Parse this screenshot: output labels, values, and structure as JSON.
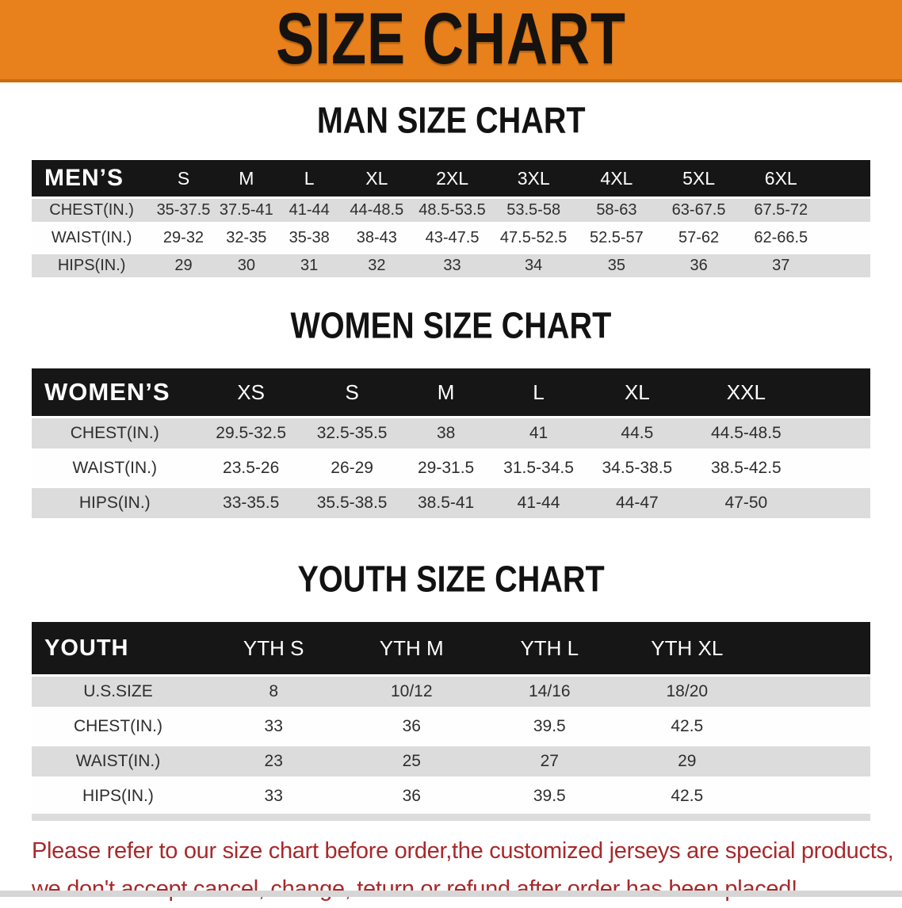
{
  "banner": {
    "title": "SIZE CHART"
  },
  "colors": {
    "banner_orange": "#e8811b",
    "banner_edge": "#c86d10",
    "header_black": "#161616",
    "row_gray": "#dcdcdc",
    "disclaimer_red": "#a8292b"
  },
  "sections": [
    {
      "heading": "MAN SIZE CHART",
      "table": {
        "corner": "MEN’S",
        "columns": [
          "S",
          "M",
          "L",
          "XL",
          "2XL",
          "3XL",
          "4XL",
          "5XL",
          "6XL"
        ],
        "rows": [
          {
            "label": "CHEST(IN.)",
            "values": [
              "35-37.5",
              "37.5-41",
              "41-44",
              "44-48.5",
              "48.5-53.5",
              "53.5-58",
              "58-63",
              "63-67.5",
              "67.5-72"
            ]
          },
          {
            "label": "WAIST(IN.)",
            "values": [
              "29-32",
              "32-35",
              "35-38",
              "38-43",
              "43-47.5",
              "47.5-52.5",
              "52.5-57",
              "57-62",
              "62-66.5"
            ]
          },
          {
            "label": "HIPS(IN.)",
            "values": [
              "29",
              "30",
              "31",
              "32",
              "33",
              "34",
              "35",
              "36",
              "37"
            ]
          }
        ]
      }
    },
    {
      "heading": "WOMEN SIZE CHART",
      "table": {
        "corner": "WOMEN’S",
        "columns": [
          "XS",
          "S",
          "M",
          "L",
          "XL",
          "XXL"
        ],
        "rows": [
          {
            "label": "CHEST(IN.)",
            "values": [
              "29.5-32.5",
              "32.5-35.5",
              "38",
              "41",
              "44.5",
              "44.5-48.5"
            ]
          },
          {
            "label": "WAIST(IN.)",
            "values": [
              "23.5-26",
              "26-29",
              "29-31.5",
              "31.5-34.5",
              "34.5-38.5",
              "38.5-42.5"
            ]
          },
          {
            "label": "HIPS(IN.)",
            "values": [
              "33-35.5",
              "35.5-38.5",
              "38.5-41",
              "41-44",
              "44-47",
              "47-50"
            ]
          }
        ]
      }
    },
    {
      "heading": "YOUTH SIZE CHART",
      "table": {
        "corner": "YOUTH",
        "columns": [
          "YTH S",
          "YTH M",
          "YTH L",
          "YTH XL"
        ],
        "rows": [
          {
            "label": "U.S.SIZE",
            "values": [
              "8",
              "10/12",
              "14/16",
              "18/20"
            ]
          },
          {
            "label": "CHEST(IN.)",
            "values": [
              "33",
              "36",
              "39.5",
              "42.5"
            ]
          },
          {
            "label": "WAIST(IN.)",
            "values": [
              "23",
              "25",
              "27",
              "29"
            ]
          },
          {
            "label": "HIPS(IN.)",
            "values": [
              "33",
              "36",
              "39.5",
              "42.5"
            ]
          }
        ]
      }
    }
  ],
  "disclaimer": {
    "line1": "Please refer to our size chart before order,the customized jerseys are special products,",
    "line2": "we don't accept cancel, change, teturn or refund after order has been placed!"
  }
}
